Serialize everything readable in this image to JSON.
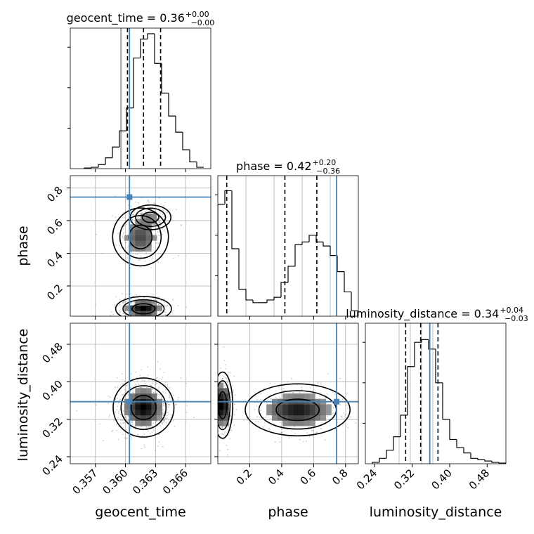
{
  "chart_data": {
    "type": "corner",
    "parameters": [
      "geocent_time",
      "phase",
      "luminosity_distance"
    ],
    "truths": {
      "geocent_time": 0.3604,
      "phase": 0.744,
      "luminosity_distance": 0.3575
    },
    "panels": {
      "geocent_time_hist": {
        "title": {
          "main": "geocent_time = 0.36",
          "plus": "+0.00",
          "minus": "−0.00"
        },
        "xlim": [
          0.3545,
          0.3685
        ],
        "quantiles": [
          0.3602,
          0.3618,
          0.3635
        ],
        "bins_x": [
          0.3559,
          0.3566,
          0.3573,
          0.358,
          0.3587,
          0.3594,
          0.3601,
          0.3608,
          0.3615,
          0.3622,
          0.3629,
          0.3636,
          0.3643,
          0.365,
          0.3657,
          0.3664,
          0.3671,
          0.3678
        ],
        "counts": [
          0.005,
          0.01,
          0.03,
          0.08,
          0.16,
          0.28,
          0.45,
          0.82,
          0.96,
          1.0,
          0.78,
          0.56,
          0.39,
          0.27,
          0.14,
          0.05,
          0.01
        ]
      },
      "phase_hist": {
        "title": {
          "main": "phase = 0.42",
          "plus": "+0.20",
          "minus": "−0.36"
        },
        "xlim": [
          0.0,
          0.88
        ],
        "quantiles": [
          0.056,
          0.42,
          0.62
        ],
        "bins_x": [
          0.0,
          0.044,
          0.088,
          0.132,
          0.176,
          0.22,
          0.264,
          0.308,
          0.352,
          0.396,
          0.44,
          0.484,
          0.528,
          0.572,
          0.616,
          0.66,
          0.704,
          0.748,
          0.792,
          0.836,
          0.88
        ],
        "counts": [
          0.83,
          0.93,
          0.5,
          0.2,
          0.12,
          0.1,
          0.1,
          0.12,
          0.14,
          0.25,
          0.37,
          0.53,
          0.55,
          0.6,
          0.55,
          0.52,
          0.45,
          0.33,
          0.18,
          0.04
        ]
      },
      "luminosity_distance_hist": {
        "title": {
          "main": "luminosity_distance = 0.34",
          "plus": "+0.04",
          "minus": "−0.03"
        },
        "xlim": [
          0.22,
          0.52
        ],
        "quantiles": [
          0.306,
          0.338,
          0.375
        ],
        "bins_x": [
          0.235,
          0.25,
          0.265,
          0.28,
          0.295,
          0.31,
          0.325,
          0.34,
          0.355,
          0.37,
          0.385,
          0.4,
          0.415,
          0.43,
          0.445,
          0.46,
          0.475,
          0.49,
          0.505,
          0.52
        ],
        "counts": [
          0.01,
          0.04,
          0.1,
          0.2,
          0.36,
          0.72,
          0.9,
          0.92,
          0.85,
          0.6,
          0.33,
          0.18,
          0.12,
          0.08,
          0.04,
          0.03,
          0.02,
          0.01,
          0.005
        ]
      },
      "phase_vs_geocent_time": {
        "xlim": [
          0.3545,
          0.3685
        ],
        "ylim": [
          0.015,
          0.875
        ],
        "density_modes": [
          {
            "x": 0.3615,
            "y": 0.5,
            "sx": 0.0011,
            "sy": 0.07,
            "weight": 1.0
          },
          {
            "x": 0.3625,
            "y": 0.62,
            "sx": 0.0008,
            "sy": 0.03,
            "weight": 0.5
          },
          {
            "x": 0.3618,
            "y": 0.06,
            "sx": 0.0011,
            "sy": 0.03,
            "weight": 1.6
          }
        ]
      },
      "luminosity_distance_vs_geocent_time": {
        "xlim": [
          0.3545,
          0.3685
        ],
        "ylim": [
          0.225,
          0.525
        ],
        "density_modes": [
          {
            "x": 0.3618,
            "y": 0.345,
            "sx": 0.0012,
            "sy": 0.025,
            "weight": 1.0
          }
        ]
      },
      "luminosity_distance_vs_phase": {
        "xlim": [
          0.0,
          0.88
        ],
        "ylim": [
          0.225,
          0.525
        ],
        "density_modes": [
          {
            "x": 0.5,
            "y": 0.34,
            "sx": 0.13,
            "sy": 0.022,
            "weight": 1.0
          },
          {
            "x": 0.03,
            "y": 0.35,
            "sx": 0.025,
            "sy": 0.028,
            "weight": 1.3
          }
        ]
      }
    },
    "ticks": {
      "geocent_time": [
        "0.357",
        "0.360",
        "0.363",
        "0.366"
      ],
      "phase": [
        "0.2",
        "0.4",
        "0.6",
        "0.8"
      ],
      "luminosity_distance": [
        "0.24",
        "0.32",
        "0.40",
        "0.48"
      ]
    },
    "tick_values": {
      "geocent_time": [
        0.357,
        0.36,
        0.363,
        0.366
      ],
      "phase": [
        0.2,
        0.4,
        0.6,
        0.8
      ],
      "luminosity_distance": [
        0.24,
        0.32,
        0.4,
        0.48
      ]
    },
    "axis_labels": {
      "x_left": "geocent_time",
      "x_mid": "phase",
      "x_right": "luminosity_distance",
      "y_mid": "phase",
      "y_bottom": "luminosity_distance"
    },
    "grid": true,
    "colors": {
      "truth": "#4682b4",
      "hist": "#000000",
      "grid": "#b0b0b0",
      "density": "#000000"
    }
  }
}
